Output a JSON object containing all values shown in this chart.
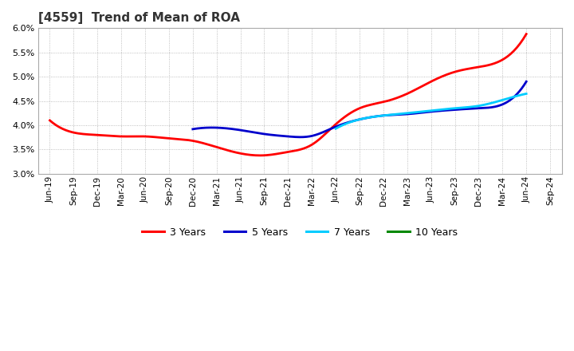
{
  "title": "[4559]  Trend of Mean of ROA",
  "x_labels": [
    "Jun-19",
    "Sep-19",
    "Dec-19",
    "Mar-20",
    "Jun-20",
    "Sep-20",
    "Dec-20",
    "Mar-21",
    "Jun-21",
    "Sep-21",
    "Dec-21",
    "Mar-22",
    "Jun-22",
    "Sep-22",
    "Dec-22",
    "Mar-23",
    "Jun-23",
    "Sep-23",
    "Dec-23",
    "Mar-24",
    "Jun-24",
    "Sep-24"
  ],
  "y_min": 0.03,
  "y_max": 0.06,
  "y_ticks": [
    0.03,
    0.035,
    0.04,
    0.045,
    0.05,
    0.055,
    0.06
  ],
  "series": {
    "3 Years": {
      "color": "#ff0000",
      "values": [
        0.041,
        0.0385,
        0.038,
        0.0377,
        0.0377,
        0.0373,
        0.0368,
        0.0355,
        0.0342,
        0.0338,
        0.0345,
        0.036,
        0.0402,
        0.0435,
        0.0448,
        0.0465,
        0.049,
        0.051,
        0.052,
        0.0535,
        0.0588,
        null
      ]
    },
    "5 Years": {
      "color": "#0000cc",
      "values": [
        null,
        null,
        null,
        null,
        null,
        null,
        0.0392,
        0.0395,
        0.039,
        0.0382,
        0.0377,
        0.0378,
        0.0397,
        0.0412,
        0.042,
        0.0423,
        0.0428,
        0.0432,
        0.0435,
        0.0443,
        0.049,
        null
      ]
    },
    "7 Years": {
      "color": "#00ccff",
      "values": [
        null,
        null,
        null,
        null,
        null,
        null,
        null,
        null,
        null,
        null,
        null,
        null,
        0.0393,
        0.0412,
        0.042,
        0.0425,
        0.043,
        0.0435,
        0.044,
        0.0452,
        0.0465,
        null
      ]
    },
    "10 Years": {
      "color": "#008800",
      "values": [
        null,
        null,
        null,
        null,
        null,
        null,
        null,
        null,
        null,
        null,
        null,
        null,
        null,
        null,
        null,
        null,
        null,
        null,
        null,
        null,
        null,
        null
      ]
    }
  },
  "background_color": "#ffffff",
  "plot_bg_color": "#ffffff",
  "grid_color": "#999999",
  "title_color": "#333333",
  "legend_items": [
    "3 Years",
    "5 Years",
    "7 Years",
    "10 Years"
  ],
  "legend_colors": [
    "#ff0000",
    "#0000cc",
    "#00ccff",
    "#008800"
  ]
}
